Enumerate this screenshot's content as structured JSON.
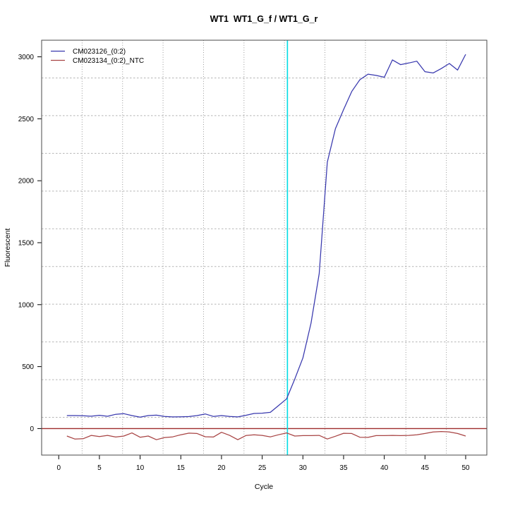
{
  "title": "WT1  WT1_G_f / WT1_G_r",
  "chart_data": {
    "type": "line",
    "title": "WT1  WT1_G_f / WT1_G_r",
    "xlabel": "Cycle",
    "ylabel": "Fluorescent",
    "x_ticks": [
      0,
      5,
      10,
      15,
      20,
      25,
      30,
      35,
      40,
      45,
      50
    ],
    "y_ticks": [
      0,
      500,
      1000,
      1500,
      2000,
      2500,
      3000
    ],
    "xlim": [
      -2.1,
      52.6
    ],
    "ylim": [
      -214,
      3134
    ],
    "grid": {
      "on": true,
      "nx": 11,
      "ny": 11,
      "h_color": "#b5b5b5",
      "v_color": "#9a9a9a"
    },
    "threshold_line": {
      "y": 0,
      "color": "#9e2b2b"
    },
    "ct_line": {
      "x": 28.1,
      "color": "#00dce4"
    },
    "legend_position": "top-left",
    "cycles": [
      1,
      2,
      3,
      4,
      5,
      6,
      7,
      8,
      9,
      10,
      11,
      12,
      13,
      14,
      15,
      16,
      17,
      18,
      19,
      20,
      21,
      22,
      23,
      24,
      25,
      26,
      27,
      28,
      29,
      30,
      31,
      32,
      33,
      34,
      35,
      36,
      37,
      38,
      39,
      40,
      41,
      42,
      43,
      44,
      45,
      46,
      47,
      48,
      49,
      50
    ],
    "series": [
      {
        "name": "CM023126_(0:2)",
        "color": "#3838ae",
        "values": [
          105,
          105,
          103,
          100,
          107,
          99,
          115,
          120,
          105,
          92,
          105,
          108,
          98,
          94,
          95,
          97,
          105,
          118,
          98,
          105,
          98,
          94,
          107,
          122,
          124,
          131,
          185,
          240,
          400,
          570,
          850,
          1250,
          2150,
          2420,
          2575,
          2720,
          2815,
          2860,
          2850,
          2835,
          2975,
          2937,
          2950,
          2965,
          2880,
          2870,
          2905,
          2946,
          2893,
          3020
        ]
      },
      {
        "name": "CM023134_(0:2)_NTC",
        "color": "#a84444",
        "values": [
          -60,
          -85,
          -82,
          -55,
          -65,
          -55,
          -68,
          -60,
          -35,
          -70,
          -60,
          -90,
          -72,
          -67,
          -50,
          -37,
          -40,
          -66,
          -68,
          -30,
          -55,
          -90,
          -56,
          -50,
          -55,
          -67,
          -50,
          -35,
          -60,
          -57,
          -57,
          -55,
          -84,
          -62,
          -38,
          -40,
          -70,
          -71,
          -57,
          -57,
          -55,
          -57,
          -55,
          -50,
          -40,
          -28,
          -24,
          -27,
          -40,
          -60
        ]
      }
    ]
  }
}
